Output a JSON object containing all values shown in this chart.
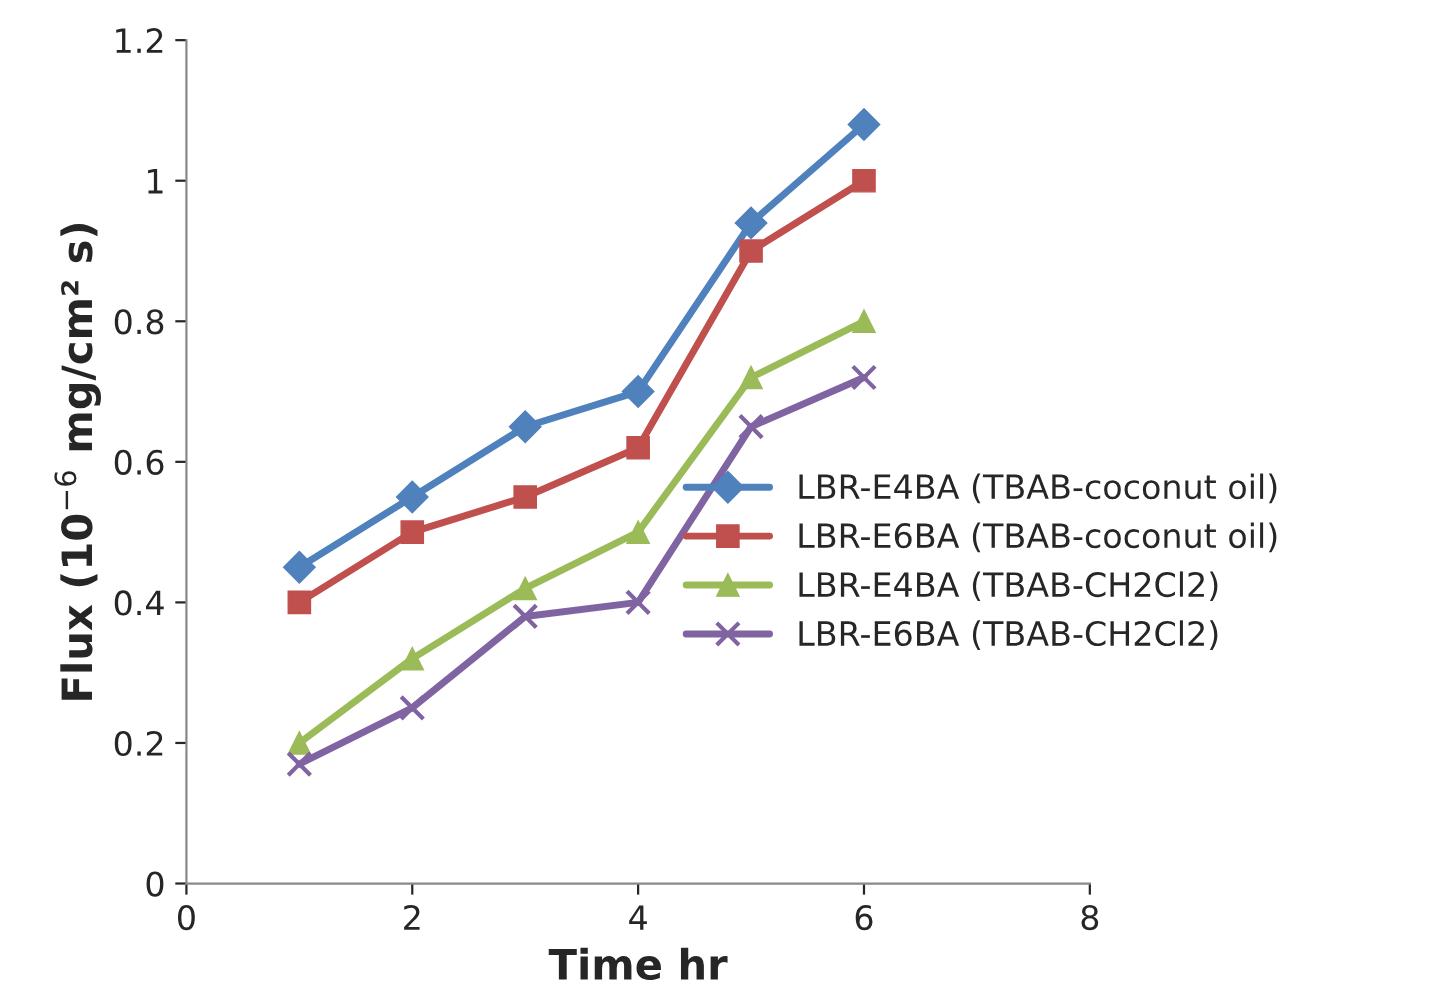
{
  "chart_data": {
    "type": "line",
    "xlabel": "Time hr",
    "ylabel": "Flux (10$^{−6}$ mg/cm² s)",
    "x": [
      1,
      2,
      3,
      4,
      5,
      6
    ],
    "series": [
      {
        "name": "LBR-E4BA (TBAB-coconut oil)",
        "color": "#4f81bd",
        "marker": "diamond",
        "values": [
          0.45,
          0.55,
          0.65,
          0.7,
          0.94,
          1.08
        ]
      },
      {
        "name": "LBR-E6BA (TBAB-coconut oil)",
        "color": "#c0504d",
        "marker": "square",
        "values": [
          0.4,
          0.5,
          0.55,
          0.62,
          0.9,
          1.0
        ]
      },
      {
        "name": "LBR-E4BA (TBAB-CH2Cl2)",
        "color": "#9bbb59",
        "marker": "triangle",
        "values": [
          0.2,
          0.32,
          0.42,
          0.5,
          0.72,
          0.8
        ]
      },
      {
        "name": "LBR-E6BA (TBAB-CH2Cl2)",
        "color": "#8064a2",
        "marker": "cross",
        "values": [
          0.17,
          0.25,
          0.38,
          0.4,
          0.65,
          0.72
        ]
      }
    ],
    "xlim": [
      0,
      8
    ],
    "xticks": [
      0,
      2,
      4,
      6,
      8
    ],
    "ylim": [
      0,
      1.2
    ],
    "yticks": [
      0,
      0.2,
      0.4,
      0.6,
      0.8,
      1,
      1.2
    ],
    "grid": false,
    "legend": "right",
    "line_style": "solid"
  }
}
